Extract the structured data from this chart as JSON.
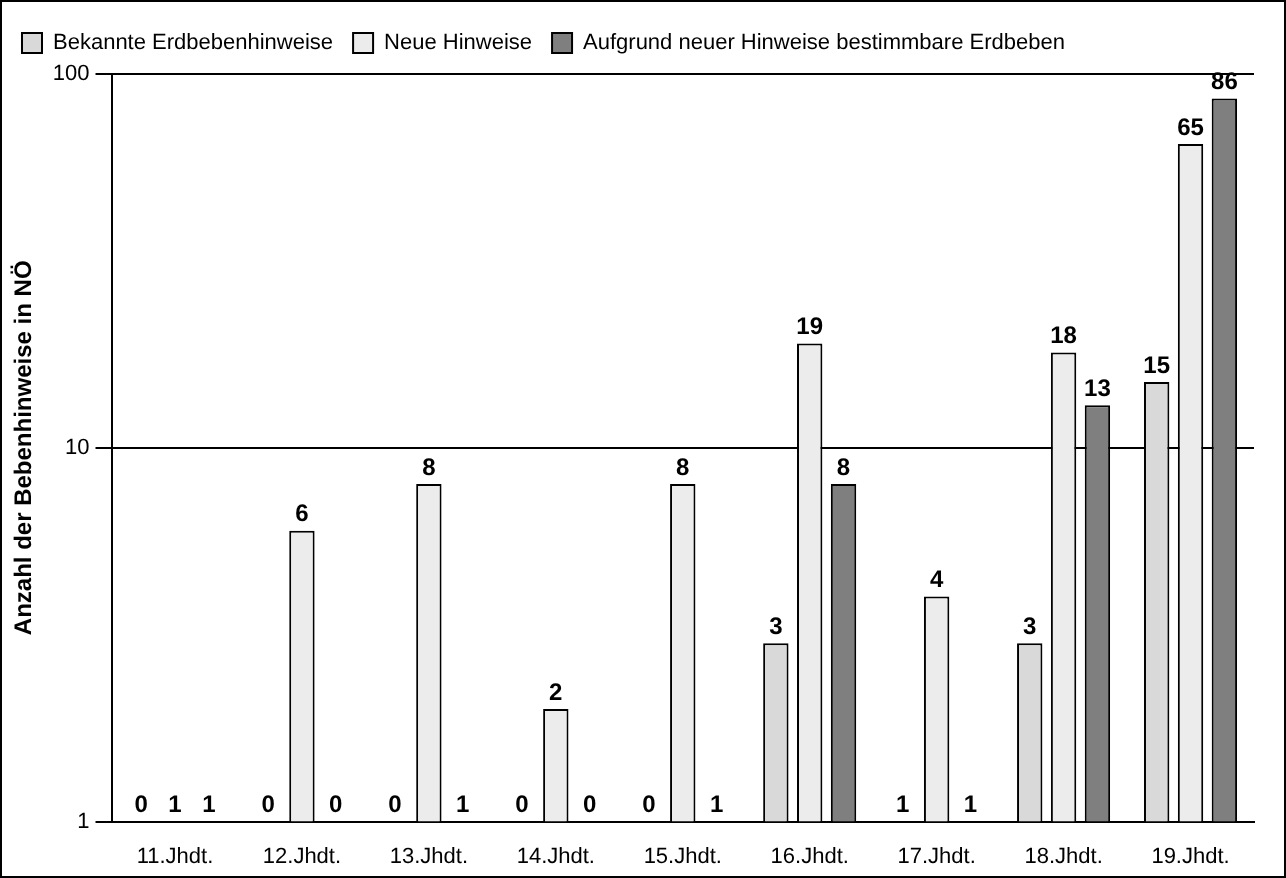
{
  "chart_data": {
    "type": "bar",
    "ylabel": "Anzahl der Bebenhinweise in NÖ",
    "categories": [
      "11.Jhdt.",
      "12.Jhdt.",
      "13.Jhdt.",
      "14.Jhdt.",
      "15.Jhdt.",
      "16.Jhdt.",
      "17.Jhdt.",
      "18.Jhdt.",
      "19.Jhdt."
    ],
    "series": [
      {
        "name": "Bekannte Erdbebenhinweise",
        "color": "#d9d9d9",
        "values": [
          null,
          null,
          null,
          null,
          null,
          3,
          null,
          3,
          15
        ],
        "value_labels": [
          "0",
          "0",
          "0",
          "0",
          "0",
          "3",
          "1",
          "3",
          "15"
        ]
      },
      {
        "name": "Neue Hinweise",
        "color": "#ececec",
        "values": [
          null,
          6,
          8,
          2,
          8,
          19,
          4,
          18,
          65
        ],
        "value_labels": [
          "1",
          "6",
          "8",
          "2",
          "8",
          "19",
          "4",
          "18",
          "65"
        ]
      },
      {
        "name": "Aufgrund neuer Hinweise bestimmbare Erdbeben",
        "color": "#7f7f7f",
        "values": [
          null,
          null,
          null,
          null,
          null,
          8,
          null,
          13,
          86
        ],
        "value_labels": [
          "1",
          "0",
          "1",
          "0",
          "1",
          "8",
          "1",
          "13",
          "86"
        ]
      }
    ],
    "log": "y",
    "ylim": [
      1,
      100
    ],
    "yticks": [
      1,
      10,
      100
    ],
    "grid": "y",
    "legend": "top"
  }
}
